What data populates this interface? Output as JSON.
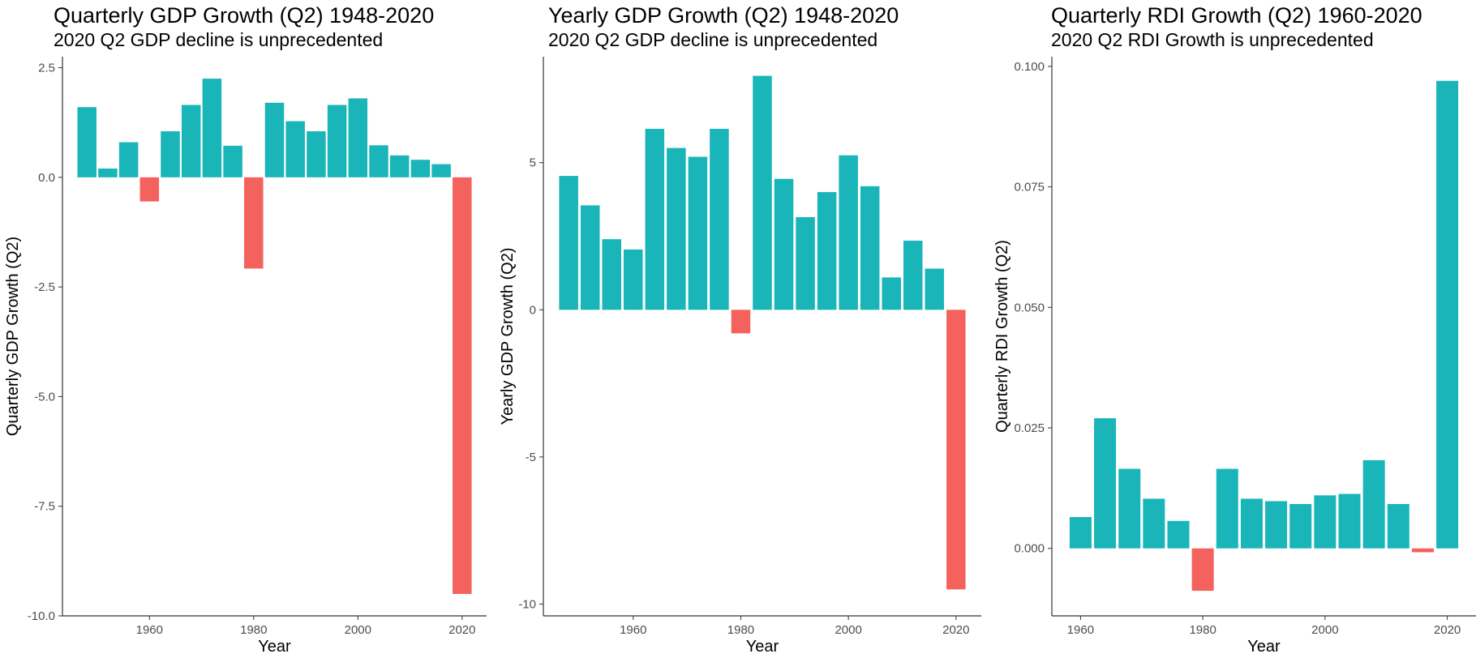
{
  "colors": {
    "positive": "#1ab5b9",
    "negative": "#f4625e",
    "axis": "#333333"
  },
  "chart_data": [
    {
      "type": "bar",
      "title": "Quarterly GDP Growth (Q2) 1948-2020",
      "subtitle": "2020 Q2 GDP decline is unprecedented",
      "xlabel": "Year",
      "ylabel": "Quarterly GDP Growth (Q2)",
      "xlim": [
        1943.3,
        2024.7
      ],
      "ylim": [
        -10.0,
        2.75
      ],
      "xticks": [
        1960,
        1980,
        2000,
        2020
      ],
      "yticks": [
        2.5,
        0.0,
        -2.5,
        -5.0,
        -7.5,
        -10.0
      ],
      "ytick_labels": [
        "2.5",
        "0.0",
        "-2.5",
        "-5.0",
        "-7.5",
        "-10.0"
      ],
      "x": [
        1948,
        1952,
        1956,
        1960,
        1964,
        1968,
        1972,
        1976,
        1980,
        1984,
        1988,
        1992,
        1996,
        2000,
        2004,
        2008,
        2012,
        2016,
        2020
      ],
      "values": [
        1.6,
        0.2,
        0.8,
        -0.55,
        1.05,
        1.65,
        2.25,
        0.72,
        -2.08,
        1.7,
        1.28,
        1.05,
        1.65,
        1.8,
        0.73,
        0.5,
        0.4,
        0.3,
        -9.5
      ]
    },
    {
      "type": "bar",
      "title": "Yearly GDP Growth (Q2) 1948-2020",
      "subtitle": "2020 Q2 GDP decline is unprecedented",
      "xlabel": "Year",
      "ylabel": "Yearly GDP Growth (Q2)",
      "xlim": [
        1943.3,
        2024.7
      ],
      "ylim": [
        -10.4,
        8.6
      ],
      "xticks": [
        1960,
        1980,
        2000,
        2020
      ],
      "yticks": [
        5,
        0,
        -5,
        -10
      ],
      "ytick_labels": [
        "5",
        "0",
        "-5",
        "-10"
      ],
      "x": [
        1948,
        1952,
        1956,
        1960,
        1964,
        1968,
        1972,
        1976,
        1980,
        1984,
        1988,
        1992,
        1996,
        2000,
        2004,
        2008,
        2012,
        2016,
        2020
      ],
      "values": [
        4.55,
        3.55,
        2.4,
        2.05,
        6.15,
        5.5,
        5.2,
        6.15,
        -0.8,
        7.95,
        4.45,
        3.15,
        4.0,
        5.25,
        4.2,
        1.1,
        2.35,
        1.4,
        -9.5
      ]
    },
    {
      "type": "bar",
      "title": "Quarterly RDI Growth (Q2) 1960-2020",
      "subtitle": "2020 Q2 RDI Growth is unprecedented",
      "xlabel": "Year",
      "ylabel": "Quarterly RDI Growth (Q2)",
      "xlim": [
        1955.3,
        2024.7
      ],
      "ylim": [
        -0.014,
        0.102
      ],
      "xticks": [
        1960,
        1980,
        2000,
        2020
      ],
      "yticks": [
        0.1,
        0.075,
        0.05,
        0.025,
        0.0
      ],
      "ytick_labels": [
        "0.100",
        "0.075",
        "0.050",
        "0.025",
        "0.000"
      ],
      "x": [
        1960,
        1964,
        1968,
        1972,
        1976,
        1980,
        1984,
        1988,
        1992,
        1996,
        2000,
        2004,
        2008,
        2012,
        2016,
        2020
      ],
      "values": [
        0.0065,
        0.027,
        0.0165,
        0.0103,
        0.0057,
        -0.0088,
        0.0165,
        0.0103,
        0.0098,
        0.0092,
        0.011,
        0.0113,
        0.0183,
        0.0092,
        -0.0008,
        0.097
      ]
    }
  ]
}
